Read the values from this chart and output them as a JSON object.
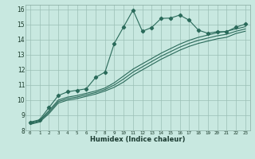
{
  "xlabel": "Humidex (Indice chaleur)",
  "bg_color": "#c8e8e0",
  "line_color": "#2a6a5a",
  "grid_color": "#9bbfb5",
  "xlim": [
    -0.5,
    23.5
  ],
  "ylim": [
    8,
    16.3
  ],
  "x": [
    0,
    1,
    2,
    3,
    4,
    5,
    6,
    7,
    8,
    9,
    10,
    11,
    12,
    13,
    14,
    15,
    16,
    17,
    18,
    19,
    20,
    21,
    22,
    23
  ],
  "line1": [
    8.55,
    8.7,
    9.5,
    10.3,
    10.55,
    10.65,
    10.75,
    11.5,
    11.85,
    13.75,
    14.85,
    15.95,
    14.55,
    14.8,
    15.4,
    15.42,
    15.62,
    15.28,
    14.62,
    14.42,
    14.52,
    14.52,
    14.82,
    15.02
  ],
  "line2": [
    8.5,
    8.65,
    9.3,
    10.0,
    10.2,
    10.3,
    10.45,
    10.6,
    10.8,
    11.15,
    11.6,
    12.05,
    12.4,
    12.75,
    13.1,
    13.4,
    13.7,
    13.95,
    14.15,
    14.3,
    14.45,
    14.55,
    14.7,
    14.85
  ],
  "line3": [
    8.45,
    8.6,
    9.2,
    9.9,
    10.1,
    10.2,
    10.35,
    10.5,
    10.7,
    11.0,
    11.4,
    11.85,
    12.2,
    12.55,
    12.9,
    13.2,
    13.5,
    13.75,
    13.95,
    14.1,
    14.25,
    14.35,
    14.55,
    14.7
  ],
  "line4": [
    8.4,
    8.55,
    9.1,
    9.8,
    10.0,
    10.1,
    10.25,
    10.4,
    10.6,
    10.85,
    11.2,
    11.65,
    12.0,
    12.35,
    12.7,
    13.0,
    13.3,
    13.55,
    13.75,
    13.9,
    14.05,
    14.15,
    14.4,
    14.55
  ]
}
